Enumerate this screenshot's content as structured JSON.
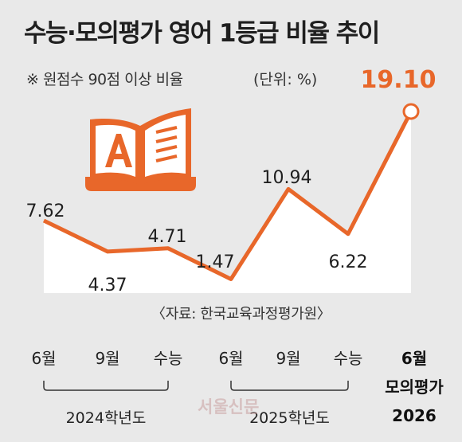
{
  "title": "수능·모의평가 영어 1등급 비율 추이",
  "subtitle": "※ 원점수 90점 이상 비율",
  "unit_label": "(단위: %)",
  "source": "〈자료: 한국교육과정평가원〉",
  "watermark": "서울신문",
  "colors": {
    "line": "#e8672a",
    "fill": "#ffffff",
    "background": "#e9e9e9",
    "icon": "#e8672a"
  },
  "icon": "open-book-icon",
  "chart_data": {
    "type": "area",
    "categories": [
      "6월",
      "9월",
      "수능",
      "6월",
      "9월",
      "수능",
      "6월 모의평가 2026"
    ],
    "x_labels": [
      [
        "6월"
      ],
      [
        "9월"
      ],
      [
        "수능"
      ],
      [
        "6월"
      ],
      [
        "9월"
      ],
      [
        "수능"
      ],
      [
        "6월",
        "모의평가",
        "2026"
      ]
    ],
    "values": [
      7.62,
      4.37,
      4.71,
      1.47,
      10.94,
      6.22,
      19.1
    ],
    "value_labels": [
      "7.62",
      "4.37",
      "4.71",
      "1.47",
      "10.94",
      "6.22",
      "19.10"
    ],
    "highlight_index": 6,
    "groups": [
      {
        "label": "2024학년도",
        "start": 0,
        "end": 2
      },
      {
        "label": "2025학년도",
        "start": 3,
        "end": 5
      }
    ],
    "ylim": [
      0,
      19.1
    ],
    "grid": false,
    "legend": "none"
  }
}
